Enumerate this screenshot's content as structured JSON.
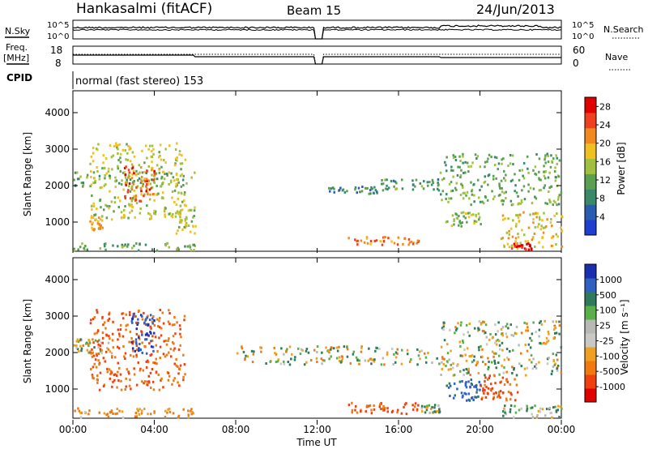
{
  "header": {
    "station": "Hankasalmi (fitACF)",
    "beam": "Beam 15",
    "date": "24/Jun/2013"
  },
  "strips": {
    "nsky": {
      "label": "N.Sky",
      "ymax_label": "10^5",
      "ymin_label": "10^0",
      "right_label": "N.Search",
      "right_ymax": "10^5",
      "right_ymin": "10^0"
    },
    "freq": {
      "label_line1": "Freq.",
      "label_line2": "[MHz]",
      "ymax": "18",
      "ymin": "8",
      "right_label": "Nave",
      "right_ymax": "60",
      "right_ymin": "0"
    },
    "cpid": {
      "label": "CPID",
      "text": "normal (fast stereo) 153"
    }
  },
  "colors": {
    "power": [
      "#1f3fd0",
      "#2a5db0",
      "#3a8a6a",
      "#5aa050",
      "#a0c040",
      "#f0c020",
      "#f08a20",
      "#f04020",
      "#e00000"
    ],
    "velocity": [
      "#1830b0",
      "#3060c0",
      "#2f7a5a",
      "#58b048",
      "#b8b8b4",
      "#c8c8c4",
      "#f0a020",
      "#f07a10",
      "#f04010",
      "#e00000"
    ]
  },
  "chart_data": [
    {
      "type": "heatmap",
      "panel": "power",
      "ylabel": "Slant Range [km]",
      "yticks": [
        "1000",
        "2000",
        "3000",
        "4000"
      ],
      "ylim": [
        200,
        4600
      ],
      "xlim": [
        "00:00",
        "24:00"
      ],
      "colorbar": {
        "label": "Power [dB]",
        "ticks": [
          "4",
          "8",
          "12",
          "16",
          "20",
          "24",
          "28"
        ],
        "range": [
          0,
          30
        ]
      },
      "features": [
        {
          "t0": 0.0,
          "t1": 6.0,
          "r0": 2000,
          "r1": 2400,
          "level": 12
        },
        {
          "t0": 0.8,
          "t1": 5.5,
          "r0": 1100,
          "r1": 3200,
          "level": 16
        },
        {
          "t0": 2.5,
          "t1": 4.0,
          "r0": 1600,
          "r1": 2600,
          "level": 24
        },
        {
          "t0": 5.0,
          "t1": 6.0,
          "r0": 700,
          "r1": 1500,
          "level": 16
        },
        {
          "t0": 0.8,
          "t1": 1.5,
          "r0": 800,
          "r1": 1200,
          "level": 20
        },
        {
          "t0": 0.0,
          "t1": 6.0,
          "r0": 250,
          "r1": 450,
          "level": 12
        },
        {
          "t0": 12.5,
          "t1": 15.0,
          "r0": 1800,
          "r1": 2000,
          "level": 8
        },
        {
          "t0": 15.0,
          "t1": 18.0,
          "r0": 1900,
          "r1": 2200,
          "level": 10
        },
        {
          "t0": 13.5,
          "t1": 17.0,
          "r0": 400,
          "r1": 620,
          "level": 22
        },
        {
          "t0": 18.0,
          "t1": 24.0,
          "r0": 1500,
          "r1": 2900,
          "level": 12
        },
        {
          "t0": 18.2,
          "t1": 20.0,
          "r0": 900,
          "r1": 1300,
          "level": 14
        },
        {
          "t0": 21.0,
          "t1": 24.0,
          "r0": 300,
          "r1": 1300,
          "level": 18
        },
        {
          "t0": 21.5,
          "t1": 22.5,
          "r0": 250,
          "r1": 450,
          "level": 28
        }
      ]
    },
    {
      "type": "heatmap",
      "panel": "velocity",
      "ylabel": "Slant Range [km]",
      "yticks": [
        "1000",
        "2000",
        "3000",
        "4000"
      ],
      "ylim": [
        200,
        4600
      ],
      "xlabel": "Time UT",
      "xticks": [
        "00:00",
        "04:00",
        "08:00",
        "12:00",
        "16:00",
        "20:00",
        "00:00"
      ],
      "colorbar": {
        "label": "Velocity [m s⁻¹]",
        "ticks": [
          "1000",
          "500",
          "100",
          "25",
          "-25",
          "-100",
          "-500",
          "-1000"
        ],
        "range": [
          -1000,
          1000
        ]
      },
      "features": [
        {
          "t0": 0.0,
          "t1": 2.0,
          "r0": 2000,
          "r1": 2400,
          "vel": 0
        },
        {
          "t0": 0.8,
          "t1": 5.5,
          "r0": 1000,
          "r1": 3200,
          "vel": -300
        },
        {
          "t0": 2.8,
          "t1": 4.0,
          "r0": 2000,
          "r1": 3100,
          "vel": 600
        },
        {
          "t0": 0.0,
          "t1": 6.0,
          "r0": 250,
          "r1": 500,
          "vel": -150
        },
        {
          "t0": 8.0,
          "t1": 18.0,
          "r0": 1700,
          "r1": 2200,
          "vel": 0
        },
        {
          "t0": 13.5,
          "t1": 17.0,
          "r0": 350,
          "r1": 650,
          "vel": -300
        },
        {
          "t0": 17.0,
          "t1": 18.0,
          "r0": 380,
          "r1": 600,
          "vel": 80
        },
        {
          "t0": 18.0,
          "t1": 24.0,
          "r0": 1400,
          "r1": 2900,
          "vel": 0
        },
        {
          "t0": 18.3,
          "t1": 20.0,
          "r0": 700,
          "r1": 1300,
          "vel": 400
        },
        {
          "t0": 20.0,
          "t1": 22.0,
          "r0": 700,
          "r1": 1400,
          "vel": -300
        },
        {
          "t0": 21.0,
          "t1": 24.0,
          "r0": 250,
          "r1": 600,
          "vel": 80
        }
      ]
    }
  ]
}
